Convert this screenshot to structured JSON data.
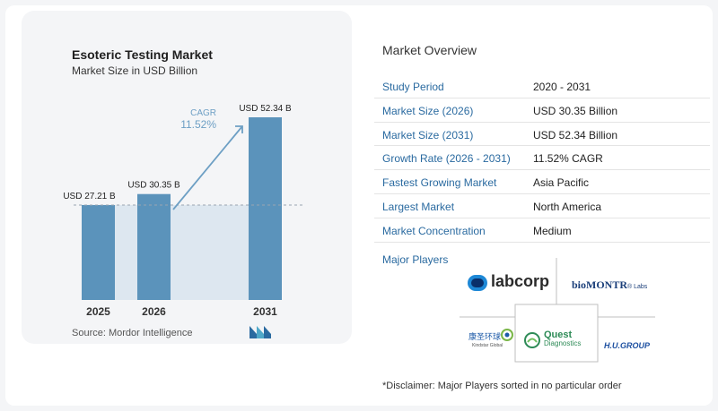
{
  "chart": {
    "title": "Esoteric Testing Market",
    "subtitle": "Market Size in USD Billion",
    "source": "Source:  Mordor Intelligence",
    "cagr_label": "CAGR",
    "cagr_value": "11.52%"
  },
  "chart_data": {
    "type": "bar",
    "title": "Esoteric Testing Market",
    "subtitle": "Market Size in USD Billion",
    "categories": [
      "2025",
      "2026",
      "2031"
    ],
    "values": [
      27.21,
      30.35,
      52.34
    ],
    "value_labels": [
      "USD 27.21 B",
      "USD 30.35 B",
      "USD 52.34 B"
    ],
    "ylim": [
      0,
      52.34
    ],
    "grid": false,
    "bar_color": "#5b93bb",
    "annotation": "CAGR 11.52%"
  },
  "overview": {
    "title": "Market Overview",
    "rows": [
      {
        "key": "Study Period",
        "value": "2020 - 2031"
      },
      {
        "key": "Market Size (2026)",
        "value": "USD 30.35 Billion"
      },
      {
        "key": "Market Size (2031)",
        "value": "USD 52.34 Billion"
      },
      {
        "key": "Growth Rate (2026 - 2031)",
        "value": "11.52% CAGR"
      },
      {
        "key": "Fastest Growing Market",
        "value": "Asia Pacific"
      },
      {
        "key": "Largest Market",
        "value": "North America"
      },
      {
        "key": "Market Concentration",
        "value": "Medium"
      }
    ]
  },
  "players": {
    "title": "Major Players",
    "labcorp": "labcorp",
    "biomontr": "bioMONTR",
    "biomontr_sup": "® Labs",
    "kingmed_cn": "康圣环球",
    "kingmed_en": "Kindstar Global",
    "quest_1": "Quest",
    "quest_2": "Diagnostics",
    "hu": "H.U.GROUP"
  },
  "disclaimer": "*Disclaimer: Major Players sorted in no particular order",
  "colors": {
    "accent": "#2a6aa0",
    "bar": "#5b93bb",
    "cagr": "#6d9fc4"
  }
}
